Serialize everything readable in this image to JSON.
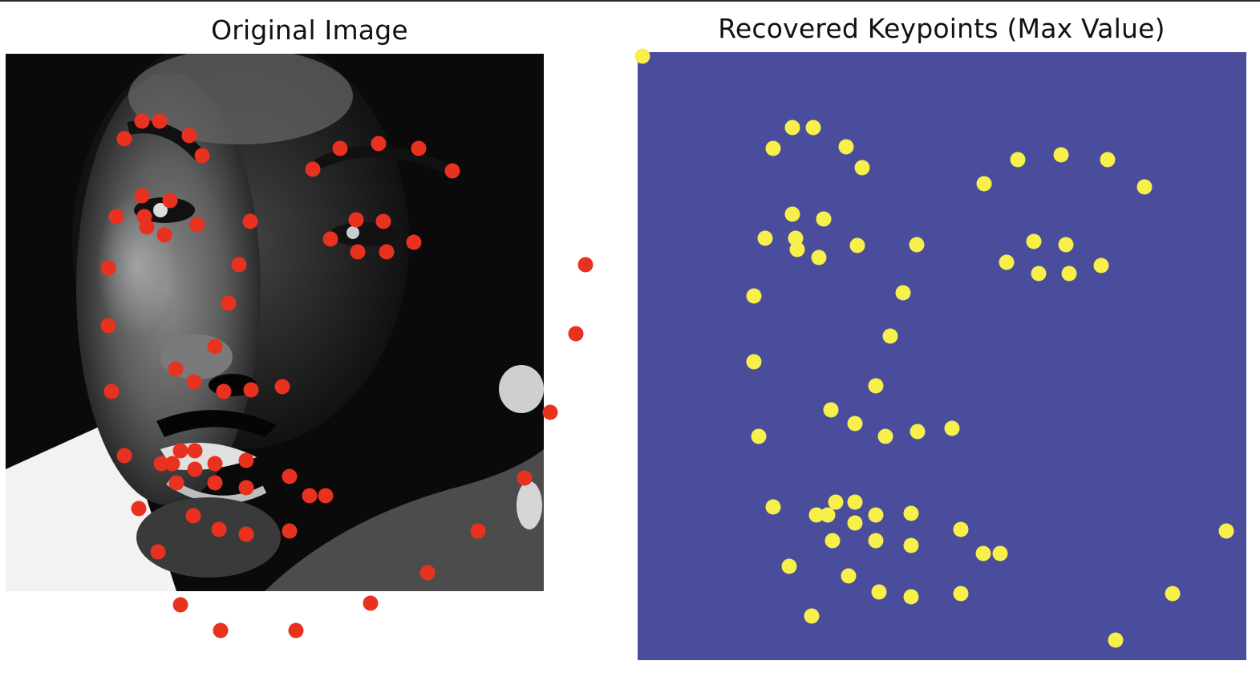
{
  "figure": {
    "left_panel": {
      "title": "Original Image"
    },
    "right_panel": {
      "title": "Recovered Keypoints (Max Value)"
    }
  },
  "colors": {
    "keypoint_original": "#e8321f",
    "keypoint_recovered": "#f8f04a",
    "heatmap_background": "#4a4c9c"
  }
}
